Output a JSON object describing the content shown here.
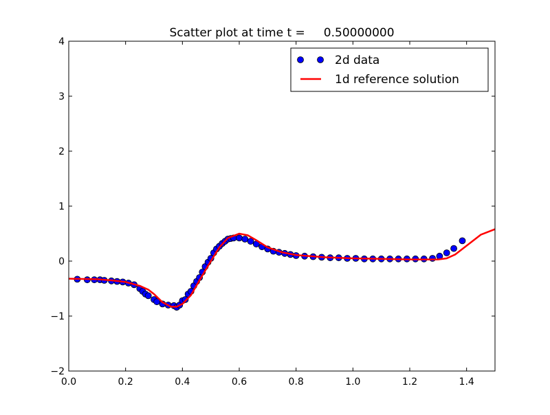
{
  "chart_data": {
    "type": "scatter",
    "title": "Scatter plot at time t =     0.50000000",
    "xlabel": "",
    "ylabel": "",
    "xlim": [
      0.0,
      1.5
    ],
    "ylim": [
      -2,
      4
    ],
    "xticks": [
      "0.0",
      "0.2",
      "0.4",
      "0.6",
      "0.8",
      "1.0",
      "1.2",
      "1.4"
    ],
    "yticks": [
      "−2",
      "−1",
      "0",
      "1",
      "2",
      "3",
      "4"
    ],
    "grid": false,
    "legend_position": "top-right",
    "series": [
      {
        "name": "2d data",
        "kind": "scatter",
        "color": "#0000ff",
        "x": [
          0.03,
          0.065,
          0.09,
          0.11,
          0.125,
          0.15,
          0.17,
          0.19,
          0.21,
          0.23,
          0.25,
          0.26,
          0.27,
          0.28,
          0.3,
          0.31,
          0.33,
          0.35,
          0.37,
          0.38,
          0.39,
          0.4,
          0.41,
          0.42,
          0.43,
          0.44,
          0.45,
          0.46,
          0.47,
          0.48,
          0.49,
          0.5,
          0.51,
          0.52,
          0.53,
          0.54,
          0.55,
          0.56,
          0.57,
          0.58,
          0.6,
          0.62,
          0.64,
          0.66,
          0.68,
          0.7,
          0.72,
          0.74,
          0.76,
          0.78,
          0.8,
          0.83,
          0.86,
          0.89,
          0.92,
          0.95,
          0.98,
          1.01,
          1.04,
          1.07,
          1.1,
          1.13,
          1.16,
          1.19,
          1.22,
          1.25,
          1.28,
          1.305,
          1.33,
          1.355,
          1.385
        ],
        "y": [
          -0.33,
          -0.34,
          -0.34,
          -0.34,
          -0.35,
          -0.36,
          -0.37,
          -0.38,
          -0.4,
          -0.43,
          -0.5,
          -0.55,
          -0.6,
          -0.63,
          -0.7,
          -0.74,
          -0.78,
          -0.8,
          -0.81,
          -0.84,
          -0.8,
          -0.72,
          -0.7,
          -0.6,
          -0.55,
          -0.45,
          -0.37,
          -0.3,
          -0.2,
          -0.1,
          -0.02,
          0.05,
          0.15,
          0.22,
          0.27,
          0.32,
          0.36,
          0.4,
          0.41,
          0.42,
          0.42,
          0.4,
          0.36,
          0.31,
          0.26,
          0.22,
          0.18,
          0.16,
          0.14,
          0.12,
          0.1,
          0.09,
          0.08,
          0.07,
          0.06,
          0.06,
          0.05,
          0.05,
          0.04,
          0.04,
          0.04,
          0.04,
          0.04,
          0.04,
          0.04,
          0.04,
          0.05,
          0.09,
          0.15,
          0.23,
          0.37
        ]
      },
      {
        "name": "1d reference solution",
        "kind": "line",
        "color": "#ff0000",
        "x": [
          0,
          0.1,
          0.15,
          0.2,
          0.25,
          0.28,
          0.3,
          0.33,
          0.36,
          0.38,
          0.4,
          0.43,
          0.46,
          0.5,
          0.53,
          0.56,
          0.6,
          0.63,
          0.66,
          0.7,
          0.75,
          0.8,
          0.9,
          1.0,
          1.1,
          1.2,
          1.3,
          1.33,
          1.36,
          1.4,
          1.45,
          1.5
        ],
        "y": [
          -0.32,
          -0.33,
          -0.35,
          -0.38,
          -0.45,
          -0.52,
          -0.6,
          -0.75,
          -0.83,
          -0.83,
          -0.78,
          -0.62,
          -0.35,
          0.0,
          0.25,
          0.42,
          0.5,
          0.47,
          0.38,
          0.25,
          0.16,
          0.11,
          0.07,
          0.05,
          0.04,
          0.03,
          0.03,
          0.05,
          0.12,
          0.28,
          0.48,
          0.58
        ]
      }
    ]
  }
}
